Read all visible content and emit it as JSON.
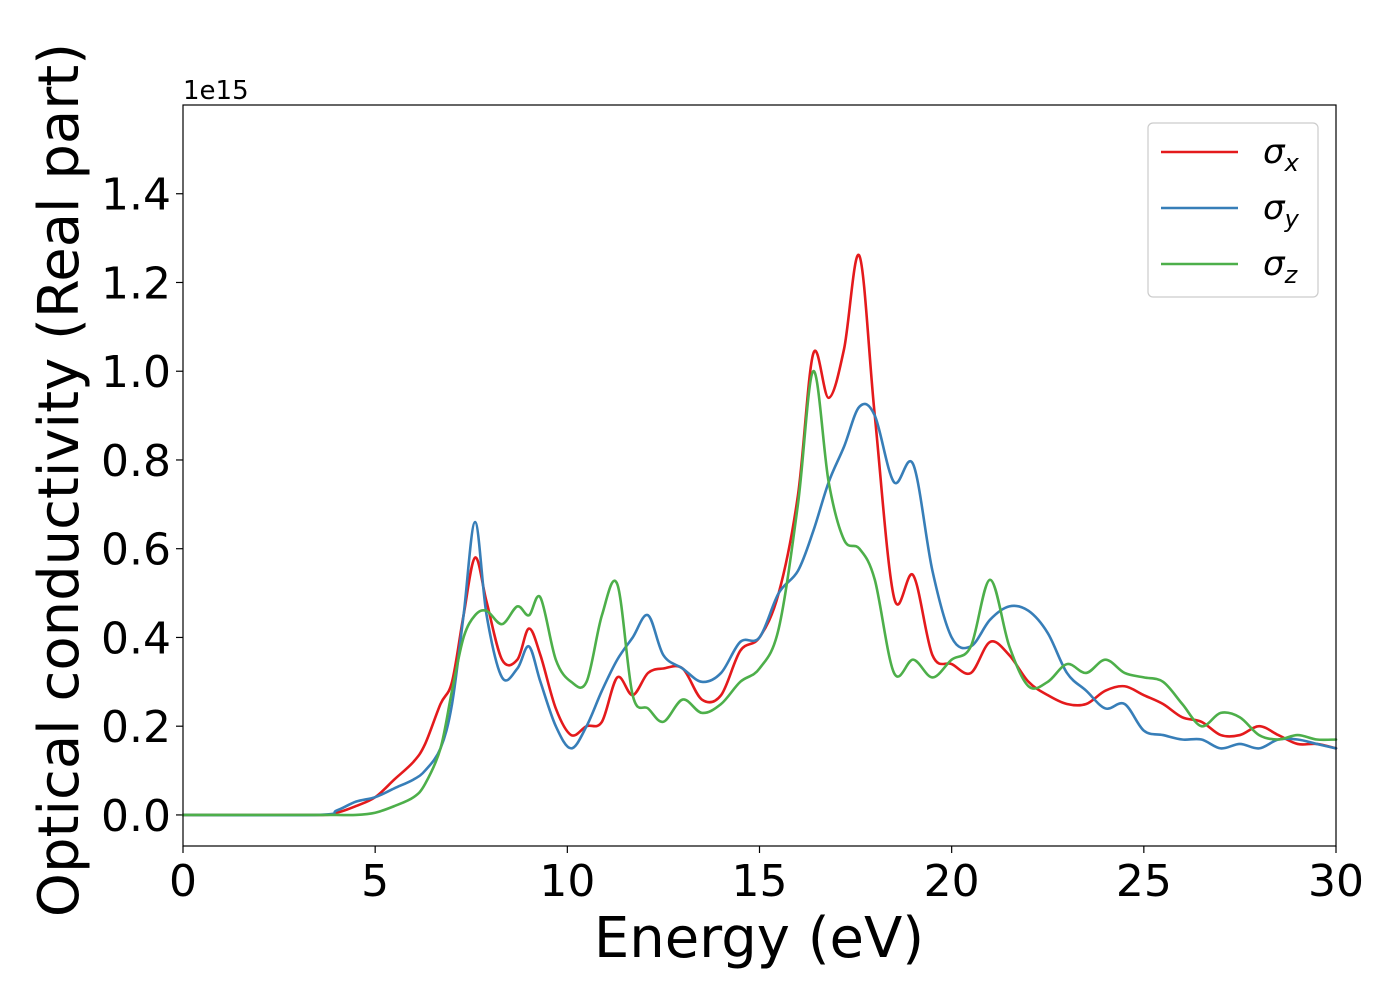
{
  "chart_data": {
    "type": "line",
    "title": "",
    "xlabel": "Energy (eV)",
    "ylabel": "Optical conductivity (Real part)",
    "y_offset_text": "1e15",
    "xlim": [
      0,
      30
    ],
    "ylim": [
      -0.07,
      1.6
    ],
    "x_ticks": [
      0,
      5,
      10,
      15,
      20,
      25,
      30
    ],
    "x_tick_labels": [
      "0",
      "5",
      "10",
      "15",
      "20",
      "25",
      "30"
    ],
    "y_ticks": [
      0.0,
      0.2,
      0.4,
      0.6,
      0.8,
      1.0,
      1.2,
      1.4
    ],
    "y_tick_labels": [
      "0.0",
      "0.2",
      "0.4",
      "0.6",
      "0.8",
      "1.0",
      "1.2",
      "1.4"
    ],
    "grid": false,
    "legend_position": "top-right",
    "series": [
      {
        "name": "σx",
        "legend_symbol": "σ",
        "legend_subscript": "x",
        "color": "#e41a1c",
        "x": [
          0,
          3.5,
          4.0,
          4.5,
          5.0,
          5.5,
          6.0,
          6.3,
          6.7,
          7.0,
          7.3,
          7.6,
          7.9,
          8.3,
          8.7,
          9.0,
          9.3,
          9.7,
          10.1,
          10.5,
          10.9,
          11.3,
          11.7,
          12.1,
          12.5,
          13.0,
          13.5,
          14.0,
          14.5,
          15.0,
          15.5,
          16.0,
          16.4,
          16.8,
          17.2,
          17.6,
          18.0,
          18.5,
          19.0,
          19.5,
          20.0,
          20.5,
          21.0,
          21.5,
          22.0,
          22.5,
          23.0,
          23.5,
          24.0,
          24.5,
          25.0,
          25.5,
          26.0,
          26.5,
          27.0,
          27.5,
          28.0,
          28.5,
          29.0,
          29.5,
          30.0
        ],
        "y": [
          0.0,
          0.0,
          0.005,
          0.02,
          0.04,
          0.08,
          0.12,
          0.16,
          0.25,
          0.3,
          0.45,
          0.58,
          0.48,
          0.35,
          0.35,
          0.42,
          0.36,
          0.24,
          0.18,
          0.2,
          0.21,
          0.31,
          0.27,
          0.32,
          0.33,
          0.33,
          0.26,
          0.27,
          0.37,
          0.4,
          0.5,
          0.72,
          1.04,
          0.94,
          1.05,
          1.26,
          0.9,
          0.49,
          0.54,
          0.36,
          0.34,
          0.32,
          0.39,
          0.36,
          0.3,
          0.27,
          0.25,
          0.25,
          0.28,
          0.29,
          0.27,
          0.25,
          0.22,
          0.21,
          0.18,
          0.18,
          0.2,
          0.18,
          0.16,
          0.16,
          0.15
        ]
      },
      {
        "name": "σy",
        "legend_symbol": "σ",
        "legend_subscript": "y",
        "color": "#377eb8",
        "x": [
          0,
          3.5,
          4.0,
          4.5,
          5.0,
          5.5,
          6.0,
          6.3,
          6.7,
          7.0,
          7.3,
          7.6,
          7.9,
          8.3,
          8.7,
          9.0,
          9.3,
          9.7,
          10.1,
          10.5,
          10.9,
          11.3,
          11.7,
          12.1,
          12.5,
          13.0,
          13.5,
          14.0,
          14.5,
          15.0,
          15.5,
          16.0,
          16.4,
          16.8,
          17.2,
          17.6,
          18.0,
          18.5,
          19.0,
          19.5,
          20.0,
          20.5,
          21.0,
          21.5,
          22.0,
          22.5,
          23.0,
          23.5,
          24.0,
          24.5,
          25.0,
          25.5,
          26.0,
          26.5,
          27.0,
          27.5,
          28.0,
          28.5,
          29.0,
          29.5,
          30.0
        ],
        "y": [
          0.0,
          0.0,
          0.01,
          0.03,
          0.04,
          0.06,
          0.08,
          0.1,
          0.15,
          0.25,
          0.45,
          0.66,
          0.45,
          0.31,
          0.33,
          0.38,
          0.3,
          0.2,
          0.15,
          0.2,
          0.28,
          0.35,
          0.4,
          0.45,
          0.36,
          0.33,
          0.3,
          0.32,
          0.39,
          0.4,
          0.5,
          0.55,
          0.64,
          0.75,
          0.83,
          0.92,
          0.9,
          0.75,
          0.79,
          0.55,
          0.4,
          0.38,
          0.44,
          0.47,
          0.46,
          0.41,
          0.32,
          0.28,
          0.24,
          0.25,
          0.19,
          0.18,
          0.17,
          0.17,
          0.15,
          0.16,
          0.15,
          0.17,
          0.17,
          0.16,
          0.15
        ]
      },
      {
        "name": "σz",
        "legend_symbol": "σ",
        "legend_subscript": "z",
        "color": "#4daf4a",
        "x": [
          0,
          3.5,
          4.0,
          4.5,
          5.0,
          5.5,
          6.0,
          6.3,
          6.7,
          7.0,
          7.3,
          7.6,
          7.9,
          8.3,
          8.7,
          9.0,
          9.3,
          9.7,
          10.1,
          10.5,
          10.9,
          11.3,
          11.7,
          12.1,
          12.5,
          13.0,
          13.5,
          14.0,
          14.5,
          15.0,
          15.5,
          16.0,
          16.4,
          16.8,
          17.2,
          17.6,
          18.0,
          18.5,
          19.0,
          19.5,
          20.0,
          20.5,
          21.0,
          21.5,
          22.0,
          22.5,
          23.0,
          23.5,
          24.0,
          24.5,
          25.0,
          25.5,
          26.0,
          26.5,
          27.0,
          27.5,
          28.0,
          28.5,
          29.0,
          29.5,
          30.0
        ],
        "y": [
          0.0,
          0.0,
          0.0,
          0.0,
          0.005,
          0.02,
          0.04,
          0.07,
          0.15,
          0.28,
          0.4,
          0.45,
          0.46,
          0.43,
          0.47,
          0.45,
          0.49,
          0.35,
          0.3,
          0.3,
          0.45,
          0.52,
          0.27,
          0.24,
          0.21,
          0.26,
          0.23,
          0.25,
          0.3,
          0.33,
          0.42,
          0.7,
          1.0,
          0.75,
          0.62,
          0.6,
          0.53,
          0.32,
          0.35,
          0.31,
          0.35,
          0.38,
          0.53,
          0.38,
          0.29,
          0.3,
          0.34,
          0.32,
          0.35,
          0.32,
          0.31,
          0.3,
          0.25,
          0.2,
          0.23,
          0.22,
          0.18,
          0.17,
          0.18,
          0.17,
          0.17
        ]
      }
    ]
  }
}
